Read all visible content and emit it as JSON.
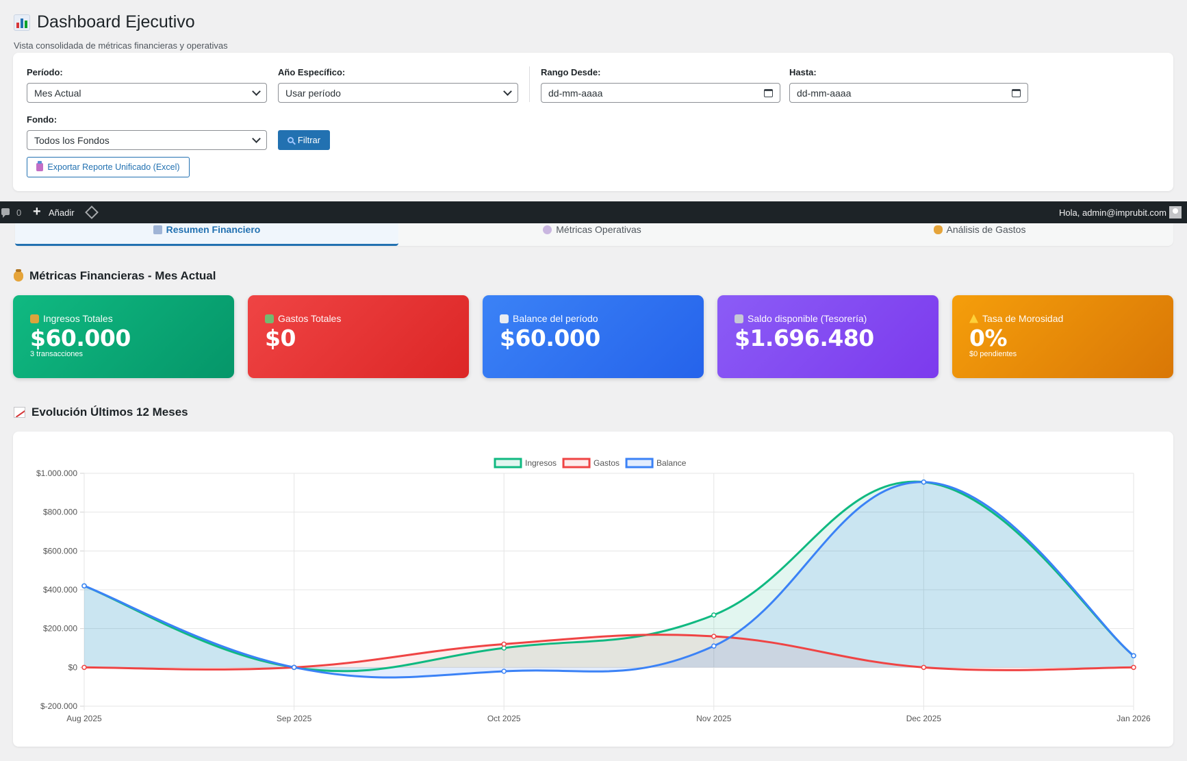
{
  "header": {
    "title": "Dashboard Ejecutivo",
    "subtitle": "Vista consolidada de métricas financieras y operativas"
  },
  "filters": {
    "periodo_label": "Período:",
    "periodo_value": "Mes Actual",
    "anio_label": "Año Específico:",
    "anio_value": "Usar período",
    "desde_label": "Rango Desde:",
    "desde_value": "dd-mm-aaaa",
    "hasta_label": "Hasta:",
    "hasta_value": "dd-mm-aaaa",
    "fondo_label": "Fondo:",
    "fondo_value": "Todos los Fondos",
    "filter_button": "Filtrar",
    "export_button": "Exportar Reporte Unificado (Excel)"
  },
  "adminbar": {
    "comments_count": "0",
    "add_label": "Añadir",
    "greeting": "Hola, admin@imprubit.com"
  },
  "tabs": [
    {
      "label": "Resumen Financiero",
      "active": true,
      "icon": "bar-chart-icon"
    },
    {
      "label": "Métricas Operativas",
      "active": false,
      "icon": "gear-icon"
    },
    {
      "label": "Análisis de Gastos",
      "active": false,
      "icon": "money-bag-icon"
    }
  ],
  "metrics_section": {
    "title": "Métricas Financieras - Mes Actual"
  },
  "kpis": [
    {
      "label": "Ingresos Totales",
      "value": "$60.000",
      "sub": "3 transacciones",
      "color": "#10b981",
      "icon": "money-bag-icon"
    },
    {
      "label": "Gastos Totales",
      "value": "$0",
      "sub": "",
      "color": "#ef4444",
      "icon": "money-wings-icon"
    },
    {
      "label": "Balance del período",
      "value": "$60.000",
      "sub": "",
      "color": "#3b82f6",
      "icon": "chart-up-icon"
    },
    {
      "label": "Saldo disponible (Tesorería)",
      "value": "$1.696.480",
      "sub": "",
      "color": "#8b5cf6",
      "icon": "bank-icon"
    },
    {
      "label": "Tasa de Morosidad",
      "value": "0%",
      "sub": "$0 pendientes",
      "color": "#f59e0b",
      "icon": "warning-icon"
    }
  ],
  "evolution_section": {
    "title": "Evolución Últimos 12 Meses"
  },
  "chart_data": {
    "type": "line",
    "title": "",
    "xlabel": "",
    "ylabel": "",
    "categories": [
      "Aug 2025",
      "Sep 2025",
      "Oct 2025",
      "Nov 2025",
      "Dec 2025",
      "Jan 2026"
    ],
    "ylim": [
      -200000,
      1000000
    ],
    "yticks": [
      "$1.000.000",
      "$800.000",
      "$600.000",
      "$400.000",
      "$200.000",
      "$0",
      "$-200.000"
    ],
    "grid": true,
    "legend": "top-center",
    "series": [
      {
        "name": "Ingresos",
        "values": [
          420000,
          0,
          100000,
          270000,
          955000,
          60000
        ],
        "color": "#10b981"
      },
      {
        "name": "Gastos",
        "values": [
          0,
          0,
          120000,
          160000,
          0,
          0
        ],
        "color": "#ef4444"
      },
      {
        "name": "Balance",
        "values": [
          420000,
          0,
          -20000,
          110000,
          955000,
          60000
        ],
        "color": "#3b82f6"
      }
    ]
  }
}
